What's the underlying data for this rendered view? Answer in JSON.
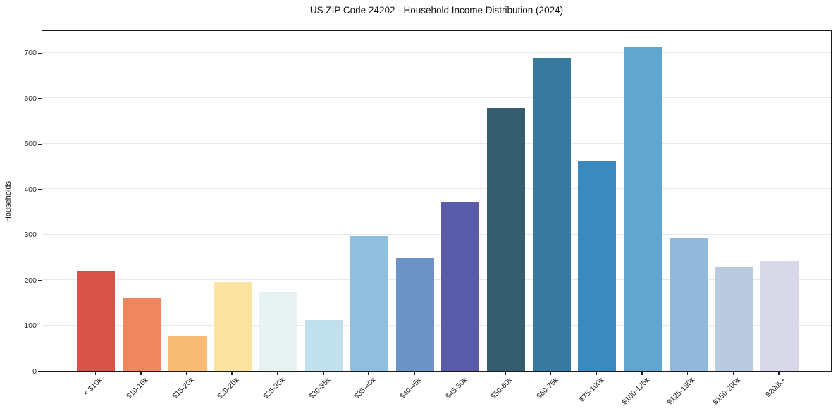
{
  "chart_data": {
    "type": "bar",
    "title": "US ZIP Code 24202 - Household Income Distribution (2024)",
    "xlabel": "",
    "ylabel": "Households",
    "categories": [
      "< $10k",
      "$10-15k",
      "$15-20k",
      "$20-25k",
      "$25-30k",
      "$30-35k",
      "$35-40k",
      "$40-45k",
      "$45-50k",
      "$50-60k",
      "$60-75k",
      "$75-100k",
      "$100-125k",
      "$125-150k",
      "$150-200k",
      "$200k+"
    ],
    "values": [
      219,
      161,
      77,
      196,
      174,
      111,
      296,
      248,
      371,
      578,
      688,
      462,
      711,
      291,
      229,
      242
    ],
    "bar_colors": [
      "#d9534b",
      "#f0865f",
      "#f9bc74",
      "#fce3a0",
      "#e7f2f3",
      "#bfe0ec",
      "#90bedd",
      "#6d93c6",
      "#5a5ca9",
      "#355d6f",
      "#38799f",
      "#3a8abf",
      "#60a6cd",
      "#92b8da",
      "#bacae1",
      "#d8d8e8"
    ],
    "ylim": [
      0,
      750
    ],
    "yticks": [
      0,
      100,
      200,
      300,
      400,
      500,
      600,
      700
    ],
    "grid": "horizontal",
    "gridline_color": "#e8e8e8",
    "background_color": "#ffffff",
    "axis_color": "#1a1a1a",
    "legend": "none"
  }
}
